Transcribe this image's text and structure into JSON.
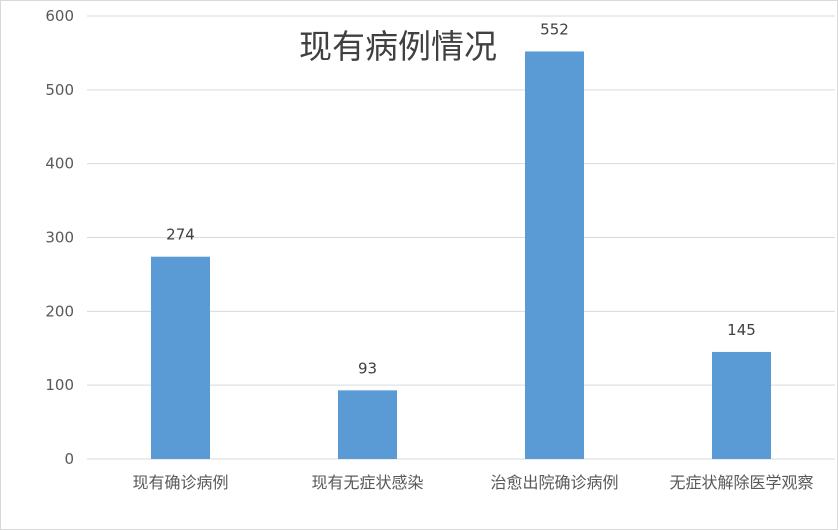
{
  "chart_data": {
    "type": "bar",
    "title": "现有病例情况",
    "xlabel": "",
    "ylabel": "",
    "categories": [
      "现有确诊病例",
      "现有无症状感染",
      "治愈出院确诊病例",
      "无症状解除医学观察"
    ],
    "values": [
      274,
      93,
      552,
      145
    ],
    "data_labels": [
      "274",
      "93",
      "552",
      "145"
    ],
    "ylim": [
      0,
      600
    ],
    "yticks": [
      0,
      100,
      200,
      300,
      400,
      500,
      600
    ],
    "ytick_labels": [
      "0",
      "100",
      "200",
      "300",
      "400",
      "500",
      "600"
    ],
    "grid": true,
    "legend": "none",
    "bar_color": "#5b9bd5"
  }
}
